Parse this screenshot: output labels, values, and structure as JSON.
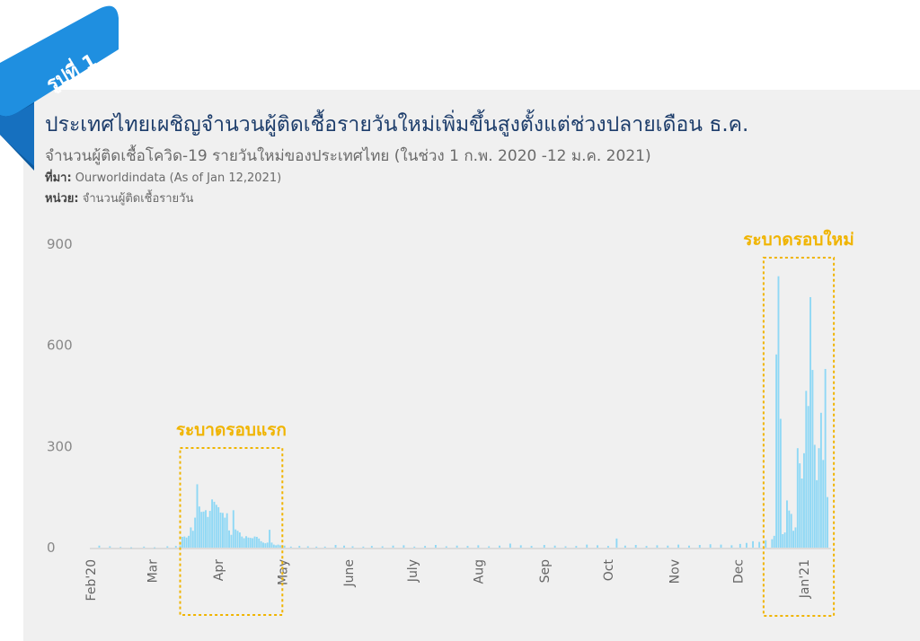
{
  "badge": {
    "text": "รูปที่ 1",
    "ribbon_color": "#1f8fe0"
  },
  "header": {
    "title": "ประเทศไทยเผชิญจำนวนผู้ติดเชื้อรายวันใหม่เพิ่มขึ้นสูงตั้งแต่ช่วงปลายเดือน ธ.ค.",
    "subtitle": "จำนวนผู้ติดเชื้อโควิด-19 รายวันใหม่ของประเทศไทย (ในช่วง 1 ก.พ. 2020 -12 ม.ค. 2021)",
    "source_label": "ที่มา:",
    "source_text": " Ourworldindata (As of Jan 12,2021)",
    "unit_label": "หน่วย:",
    "unit_text": " จำนวนผู้ติดเชื้อรายวัน"
  },
  "chart_data": {
    "type": "bar",
    "x_start": "2020-02-01",
    "x_end": "2021-01-12",
    "y_ticks": [
      0,
      300,
      600,
      900
    ],
    "ylim": [
      0,
      900
    ],
    "x_tick_labels": [
      "Feb'20",
      "Mar",
      "Apr",
      "May",
      "June",
      "July",
      "Aug",
      "Sep",
      "Oct",
      "Nov",
      "Dec",
      "Jan'21"
    ],
    "bar_color": "#8fd8f5",
    "highlight_color": "#f0b400",
    "points": [
      [
        "2020-02-05",
        6
      ],
      [
        "2020-02-10",
        4
      ],
      [
        "2020-02-15",
        2
      ],
      [
        "2020-02-20",
        1
      ],
      [
        "2020-02-26",
        3
      ],
      [
        "2020-03-02",
        1
      ],
      [
        "2020-03-08",
        4
      ],
      [
        "2020-03-12",
        5
      ],
      [
        "2020-03-14",
        7
      ],
      [
        "2020-03-15",
        32
      ],
      [
        "2020-03-16",
        33
      ],
      [
        "2020-03-17",
        30
      ],
      [
        "2020-03-18",
        35
      ],
      [
        "2020-03-19",
        60
      ],
      [
        "2020-03-20",
        50
      ],
      [
        "2020-03-21",
        89
      ],
      [
        "2020-03-22",
        188
      ],
      [
        "2020-03-23",
        122
      ],
      [
        "2020-03-24",
        106
      ],
      [
        "2020-03-25",
        107
      ],
      [
        "2020-03-26",
        111
      ],
      [
        "2020-03-27",
        91
      ],
      [
        "2020-03-28",
        109
      ],
      [
        "2020-03-29",
        143
      ],
      [
        "2020-03-30",
        136
      ],
      [
        "2020-03-31",
        127
      ],
      [
        "2020-04-01",
        120
      ],
      [
        "2020-04-02",
        104
      ],
      [
        "2020-04-03",
        103
      ],
      [
        "2020-04-04",
        89
      ],
      [
        "2020-04-05",
        102
      ],
      [
        "2020-04-06",
        51
      ],
      [
        "2020-04-07",
        38
      ],
      [
        "2020-04-08",
        111
      ],
      [
        "2020-04-09",
        54
      ],
      [
        "2020-04-10",
        50
      ],
      [
        "2020-04-11",
        45
      ],
      [
        "2020-04-12",
        33
      ],
      [
        "2020-04-13",
        28
      ],
      [
        "2020-04-14",
        34
      ],
      [
        "2020-04-15",
        30
      ],
      [
        "2020-04-16",
        29
      ],
      [
        "2020-04-17",
        28
      ],
      [
        "2020-04-18",
        33
      ],
      [
        "2020-04-19",
        32
      ],
      [
        "2020-04-20",
        27
      ],
      [
        "2020-04-21",
        19
      ],
      [
        "2020-04-22",
        15
      ],
      [
        "2020-04-23",
        13
      ],
      [
        "2020-04-24",
        15
      ],
      [
        "2020-04-25",
        53
      ],
      [
        "2020-04-26",
        15
      ],
      [
        "2020-04-27",
        9
      ],
      [
        "2020-04-28",
        7
      ],
      [
        "2020-04-29",
        9
      ],
      [
        "2020-04-30",
        7
      ],
      [
        "2020-05-02",
        6
      ],
      [
        "2020-05-05",
        3
      ],
      [
        "2020-05-09",
        5
      ],
      [
        "2020-05-13",
        4
      ],
      [
        "2020-05-17",
        3
      ],
      [
        "2020-05-21",
        3
      ],
      [
        "2020-05-26",
        8
      ],
      [
        "2020-05-30",
        6
      ],
      [
        "2020-06-03",
        4
      ],
      [
        "2020-06-08",
        3
      ],
      [
        "2020-06-12",
        5
      ],
      [
        "2020-06-17",
        4
      ],
      [
        "2020-06-22",
        6
      ],
      [
        "2020-06-27",
        7
      ],
      [
        "2020-07-02",
        3
      ],
      [
        "2020-07-07",
        5
      ],
      [
        "2020-07-12",
        8
      ],
      [
        "2020-07-17",
        4
      ],
      [
        "2020-07-22",
        6
      ],
      [
        "2020-07-27",
        5
      ],
      [
        "2020-08-01",
        7
      ],
      [
        "2020-08-06",
        4
      ],
      [
        "2020-08-11",
        6
      ],
      [
        "2020-08-16",
        12
      ],
      [
        "2020-08-21",
        7
      ],
      [
        "2020-08-26",
        5
      ],
      [
        "2020-09-01",
        8
      ],
      [
        "2020-09-06",
        6
      ],
      [
        "2020-09-11",
        4
      ],
      [
        "2020-09-16",
        5
      ],
      [
        "2020-09-21",
        9
      ],
      [
        "2020-09-26",
        7
      ],
      [
        "2020-10-01",
        5
      ],
      [
        "2020-10-05",
        27
      ],
      [
        "2020-10-09",
        6
      ],
      [
        "2020-10-14",
        8
      ],
      [
        "2020-10-19",
        5
      ],
      [
        "2020-10-24",
        7
      ],
      [
        "2020-10-29",
        6
      ],
      [
        "2020-11-03",
        9
      ],
      [
        "2020-11-08",
        6
      ],
      [
        "2020-11-13",
        8
      ],
      [
        "2020-11-18",
        10
      ],
      [
        "2020-11-23",
        9
      ],
      [
        "2020-11-28",
        7
      ],
      [
        "2020-12-02",
        11
      ],
      [
        "2020-12-05",
        14
      ],
      [
        "2020-12-08",
        19
      ],
      [
        "2020-12-11",
        17
      ],
      [
        "2020-12-14",
        22
      ],
      [
        "2020-12-17",
        25
      ],
      [
        "2020-12-18",
        35
      ],
      [
        "2020-12-19",
        573
      ],
      [
        "2020-12-20",
        805
      ],
      [
        "2020-12-21",
        382
      ],
      [
        "2020-12-22",
        40
      ],
      [
        "2020-12-23",
        45
      ],
      [
        "2020-12-24",
        140
      ],
      [
        "2020-12-25",
        110
      ],
      [
        "2020-12-26",
        100
      ],
      [
        "2020-12-27",
        50
      ],
      [
        "2020-12-28",
        60
      ],
      [
        "2020-12-29",
        295
      ],
      [
        "2020-12-30",
        250
      ],
      [
        "2020-12-31",
        205
      ],
      [
        "2021-01-01",
        280
      ],
      [
        "2021-01-02",
        465
      ],
      [
        "2021-01-03",
        420
      ],
      [
        "2021-01-04",
        743
      ],
      [
        "2021-01-05",
        527
      ],
      [
        "2021-01-06",
        305
      ],
      [
        "2021-01-07",
        200
      ],
      [
        "2021-01-08",
        295
      ],
      [
        "2021-01-09",
        400
      ],
      [
        "2021-01-10",
        260
      ],
      [
        "2021-01-11",
        530
      ],
      [
        "2021-01-12",
        150
      ]
    ],
    "annotations": [
      {
        "text": "ระบาดรอบแรก",
        "from": "2020-03-14",
        "to": "2020-05-01"
      },
      {
        "text": "ระบาดรอบใหม่",
        "from": "2020-12-13",
        "to": "2021-01-15"
      }
    ]
  }
}
